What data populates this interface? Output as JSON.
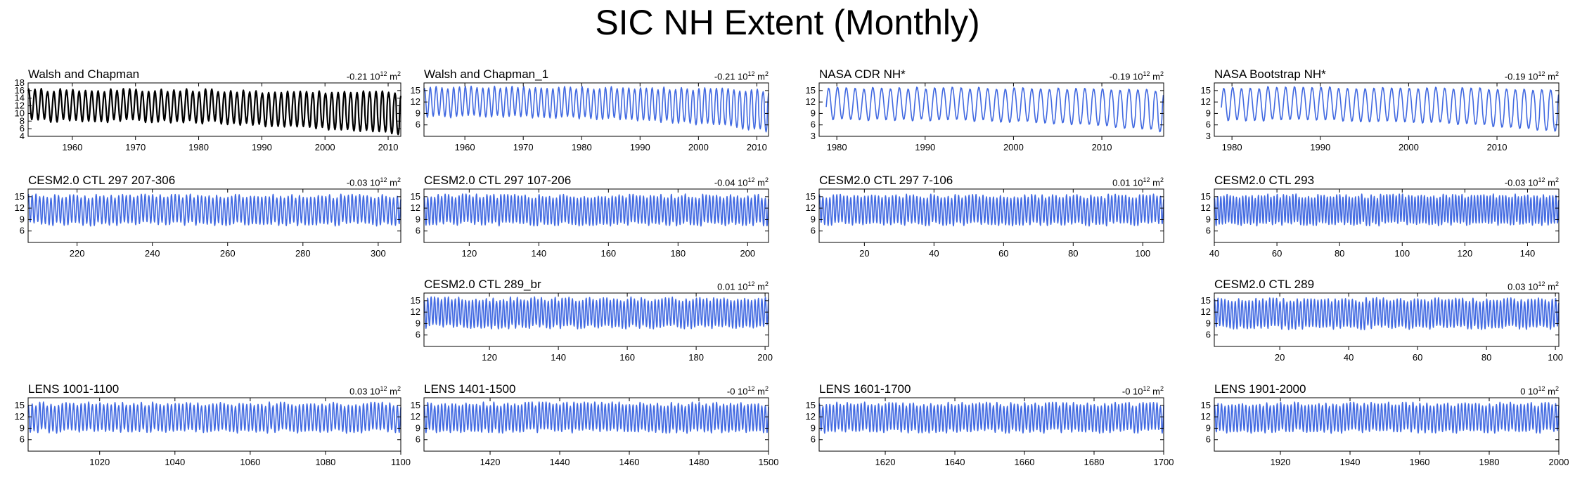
{
  "figure_title": "SIC NH Extent (Monthly)",
  "trend_unit": "10",
  "trend_exp": "12",
  "trend_area": "m",
  "trend_area_exp": "2",
  "colors": {
    "black_series": "#000000",
    "blue_series": "#4169e1",
    "axis": "#000000"
  },
  "chart_data": [
    {
      "id": "walsh",
      "type": "line",
      "title": "Walsh and Chapman",
      "trend": "-0.21",
      "color": "#000000",
      "xlim": [
        1953,
        2012
      ],
      "ylim": [
        4,
        18
      ],
      "yticks": [
        4,
        6,
        8,
        10,
        12,
        14,
        16,
        18
      ],
      "xticks": [
        1960,
        1970,
        1980,
        1990,
        2000,
        2010
      ],
      "series": [
        {
          "name": "Walsh and Chapman",
          "kind": "seasonal",
          "x_start": 1953,
          "x_end": 2012,
          "cycles_per_unit": 1,
          "base": 12,
          "amp": 4,
          "noise": 0.5,
          "late_drop": 2.5
        }
      ]
    },
    {
      "id": "walsh1",
      "type": "line",
      "title": "Walsh and Chapman_1",
      "trend": "-0.21",
      "color": "#4169e1",
      "xlim": [
        1953,
        2012
      ],
      "ylim": [
        3,
        17
      ],
      "yticks": [
        6,
        9,
        12,
        15
      ],
      "xticks": [
        1960,
        1970,
        1980,
        1990,
        2000,
        2010
      ],
      "series": [
        {
          "name": "Walsh and Chapman_1",
          "kind": "seasonal",
          "x_start": 1953,
          "x_end": 2012,
          "cycles_per_unit": 1,
          "base": 12,
          "amp": 3.8,
          "noise": 0.4,
          "late_drop": 2.5
        }
      ]
    },
    {
      "id": "nasacdr",
      "type": "line",
      "title": "NASA CDR NH*",
      "trend": "-0.19",
      "color": "#4169e1",
      "xlim": [
        1978,
        2017
      ],
      "ylim": [
        3,
        17
      ],
      "yticks": [
        3,
        6,
        9,
        12,
        15
      ],
      "xticks": [
        1980,
        1990,
        2000,
        2010
      ],
      "series": [
        {
          "name": "NASA CDR NH*",
          "kind": "seasonal",
          "x_start": 1978.8,
          "x_end": 2017,
          "cycles_per_unit": 1,
          "base": 11.5,
          "amp": 4.2,
          "noise": 0.3,
          "late_drop": 2.0
        }
      ]
    },
    {
      "id": "nasaboot",
      "type": "line",
      "title": "NASA Bootstrap NH*",
      "trend": "-0.19",
      "color": "#4169e1",
      "xlim": [
        1978,
        2017
      ],
      "ylim": [
        3,
        17
      ],
      "yticks": [
        3,
        6,
        9,
        12,
        15
      ],
      "xticks": [
        1980,
        1990,
        2000,
        2010
      ],
      "series": [
        {
          "name": "NASA Bootstrap NH*",
          "kind": "seasonal",
          "x_start": 1978.8,
          "x_end": 2017,
          "cycles_per_unit": 1,
          "base": 11.5,
          "amp": 4.3,
          "noise": 0.3,
          "late_drop": 2.0
        }
      ]
    },
    {
      "id": "ctl297a",
      "type": "line",
      "title": "CESM2.0 CTL 297 207-306",
      "trend": "-0.03",
      "color": "#4169e1",
      "xlim": [
        207,
        306
      ],
      "ylim": [
        3,
        17
      ],
      "yticks": [
        6,
        9,
        12,
        15
      ],
      "xticks": [
        220,
        240,
        260,
        280,
        300
      ],
      "series": [
        {
          "name": "CESM2.0 CTL 297 207-306",
          "kind": "seasonal",
          "x_start": 207,
          "x_end": 306,
          "cycles_per_unit": 1,
          "base": 11.5,
          "amp": 3.6,
          "noise": 0.6,
          "late_drop": 0
        }
      ]
    },
    {
      "id": "ctl297b",
      "type": "line",
      "title": "CESM2.0 CTL 297 107-206",
      "trend": "-0.04",
      "color": "#4169e1",
      "xlim": [
        107,
        206
      ],
      "ylim": [
        3,
        17
      ],
      "yticks": [
        6,
        9,
        12,
        15
      ],
      "xticks": [
        120,
        140,
        160,
        180,
        200
      ],
      "series": [
        {
          "name": "CESM2.0 CTL 297 107-206",
          "kind": "seasonal",
          "x_start": 107,
          "x_end": 206,
          "cycles_per_unit": 1,
          "base": 11.5,
          "amp": 3.6,
          "noise": 0.6,
          "late_drop": 0
        }
      ]
    },
    {
      "id": "ctl297c",
      "type": "line",
      "title": "CESM2.0 CTL 297 7-106",
      "trend": "0.01",
      "color": "#4169e1",
      "xlim": [
        7,
        106
      ],
      "ylim": [
        3,
        17
      ],
      "yticks": [
        6,
        9,
        12,
        15
      ],
      "xticks": [
        20,
        40,
        60,
        80,
        100
      ],
      "series": [
        {
          "name": "CESM2.0 CTL 297 7-106",
          "kind": "seasonal",
          "x_start": 7,
          "x_end": 106,
          "cycles_per_unit": 1,
          "base": 11.5,
          "amp": 3.6,
          "noise": 0.6,
          "late_drop": 0
        }
      ]
    },
    {
      "id": "ctl293",
      "type": "line",
      "title": "CESM2.0 CTL 293",
      "trend": "-0.03",
      "color": "#4169e1",
      "xlim": [
        40,
        150
      ],
      "ylim": [
        3,
        17
      ],
      "yticks": [
        6,
        9,
        12,
        15
      ],
      "xticks": [
        40,
        60,
        80,
        100,
        120,
        140
      ],
      "series": [
        {
          "name": "CESM2.0 CTL 293",
          "kind": "seasonal",
          "x_start": 40,
          "x_end": 150,
          "cycles_per_unit": 1,
          "base": 11.5,
          "amp": 3.6,
          "noise": 0.6,
          "late_drop": 0
        }
      ]
    },
    {
      "id": "ctl289br",
      "type": "line",
      "title": "CESM2.0 CTL 289_br",
      "trend": "0.01",
      "color": "#4169e1",
      "xlim": [
        101,
        201
      ],
      "ylim": [
        3,
        17
      ],
      "yticks": [
        6,
        9,
        12,
        15
      ],
      "xticks": [
        120,
        140,
        160,
        180,
        200
      ],
      "series": [
        {
          "name": "CESM2.0 CTL 289_br",
          "kind": "seasonal",
          "x_start": 101,
          "x_end": 201,
          "cycles_per_unit": 1,
          "base": 11.8,
          "amp": 3.6,
          "noise": 0.6,
          "late_drop": 0
        }
      ]
    },
    {
      "id": "ctl289",
      "type": "line",
      "title": "CESM2.0 CTL 289",
      "trend": "0.03",
      "color": "#4169e1",
      "xlim": [
        1,
        101
      ],
      "ylim": [
        3,
        17
      ],
      "yticks": [
        6,
        9,
        12,
        15
      ],
      "xticks": [
        20,
        40,
        60,
        80,
        100
      ],
      "series": [
        {
          "name": "CESM2.0 CTL 289",
          "kind": "seasonal",
          "x_start": 1,
          "x_end": 101,
          "cycles_per_unit": 1,
          "base": 11.6,
          "amp": 3.6,
          "noise": 0.6,
          "late_drop": 0
        }
      ]
    },
    {
      "id": "lens1001",
      "type": "line",
      "title": "LENS 1001-1100",
      "trend": "0.03",
      "color": "#4169e1",
      "xlim": [
        1001,
        1100
      ],
      "ylim": [
        3,
        17
      ],
      "yticks": [
        6,
        9,
        12,
        15
      ],
      "xticks": [
        1020,
        1040,
        1060,
        1080,
        1100
      ],
      "series": [
        {
          "name": "LENS 1001-1100",
          "kind": "seasonal",
          "x_start": 1001,
          "x_end": 1100,
          "cycles_per_unit": 1,
          "base": 11.8,
          "amp": 3.5,
          "noise": 0.6,
          "late_drop": 0
        }
      ]
    },
    {
      "id": "lens1401",
      "type": "line",
      "title": "LENS 1401-1500",
      "trend": "-0",
      "color": "#4169e1",
      "xlim": [
        1401,
        1500
      ],
      "ylim": [
        3,
        17
      ],
      "yticks": [
        6,
        9,
        12,
        15
      ],
      "xticks": [
        1420,
        1440,
        1460,
        1480,
        1500
      ],
      "series": [
        {
          "name": "LENS 1401-1500",
          "kind": "seasonal",
          "x_start": 1401,
          "x_end": 1500,
          "cycles_per_unit": 1,
          "base": 11.8,
          "amp": 3.5,
          "noise": 0.6,
          "late_drop": 0
        }
      ]
    },
    {
      "id": "lens1601",
      "type": "line",
      "title": "LENS 1601-1700",
      "trend": "-0",
      "color": "#4169e1",
      "xlim": [
        1601,
        1700
      ],
      "ylim": [
        3,
        17
      ],
      "yticks": [
        6,
        9,
        12,
        15
      ],
      "xticks": [
        1620,
        1640,
        1660,
        1680,
        1700
      ],
      "series": [
        {
          "name": "LENS 1601-1700",
          "kind": "seasonal",
          "x_start": 1601,
          "x_end": 1700,
          "cycles_per_unit": 1,
          "base": 11.8,
          "amp": 3.5,
          "noise": 0.6,
          "late_drop": 0
        }
      ]
    },
    {
      "id": "lens1901",
      "type": "line",
      "title": "LENS 1901-2000",
      "trend": "0",
      "color": "#4169e1",
      "xlim": [
        1901,
        2000
      ],
      "ylim": [
        3,
        17
      ],
      "yticks": [
        6,
        9,
        12,
        15
      ],
      "xticks": [
        1920,
        1940,
        1960,
        1980,
        2000
      ],
      "series": [
        {
          "name": "LENS 1901-2000",
          "kind": "seasonal",
          "x_start": 1901,
          "x_end": 2000,
          "cycles_per_unit": 1,
          "base": 11.8,
          "amp": 3.5,
          "noise": 0.6,
          "late_drop": 0
        }
      ]
    }
  ]
}
